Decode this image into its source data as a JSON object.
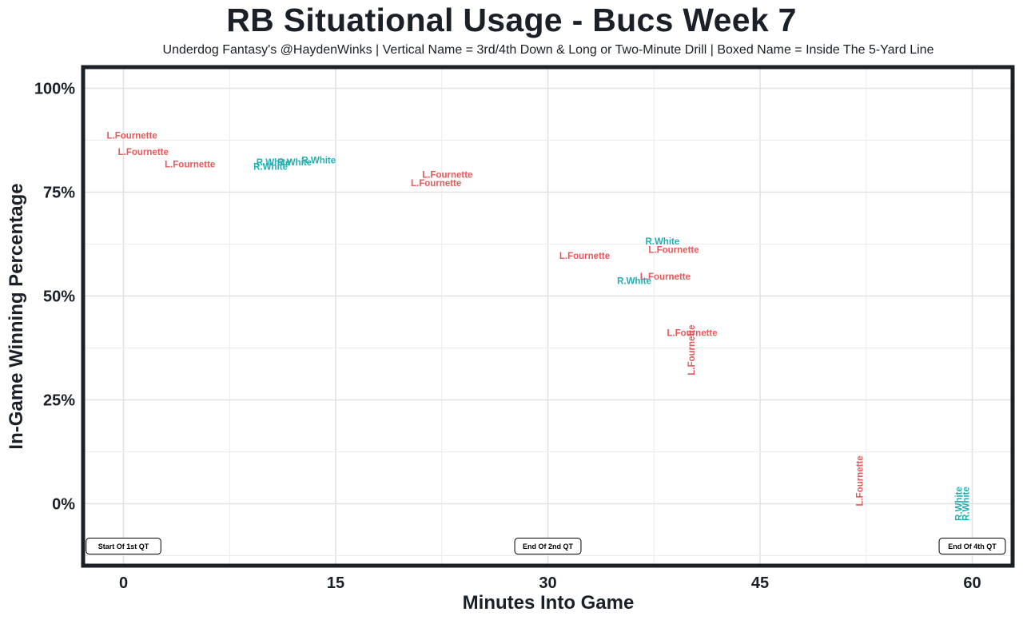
{
  "chart_data": {
    "type": "scatter",
    "title": "RB Situational Usage - Bucs Week 7",
    "subtitle": "Underdog Fantasy's @HaydenWinks | Vertical Name = 3rd/4th Down & Long or Two-Minute Drill | Boxed Name = Inside The 5-Yard Line",
    "xlabel": "Minutes Into Game",
    "ylabel": "In-Game Winning Percentage",
    "xlim": [
      -2.8,
      63
    ],
    "ylim": [
      -15,
      105
    ],
    "xticks": [
      0,
      15,
      30,
      45,
      60
    ],
    "xtick_labels": [
      "0",
      "15",
      "30",
      "45",
      "60"
    ],
    "yticks": [
      0,
      25,
      50,
      75,
      100
    ],
    "ytick_labels": [
      "0%",
      "25%",
      "50%",
      "75%",
      "100%"
    ],
    "grid": true,
    "colors": {
      "L.Fournette": "#e8585a",
      "R.White": "#1fb0b4"
    },
    "points": [
      {
        "label": "L.Fournette",
        "x": 0.6,
        "y": 88.5,
        "vertical": false
      },
      {
        "label": "L.Fournette",
        "x": 1.4,
        "y": 84.5,
        "vertical": false
      },
      {
        "label": "L.Fournette",
        "x": 4.7,
        "y": 81.5,
        "vertical": false
      },
      {
        "label": "R.White",
        "x": 10.6,
        "y": 82.0,
        "vertical": false
      },
      {
        "label": "R.White",
        "x": 12.1,
        "y": 82.0,
        "vertical": false
      },
      {
        "label": "R.White",
        "x": 13.8,
        "y": 82.5,
        "vertical": false
      },
      {
        "label": "R.White",
        "x": 10.4,
        "y": 81.0,
        "vertical": false
      },
      {
        "label": "L.Fournette",
        "x": 22.9,
        "y": 79.0,
        "vertical": false
      },
      {
        "label": "L.Fournette",
        "x": 22.1,
        "y": 77.0,
        "vertical": false
      },
      {
        "label": "L.Fournette",
        "x": 32.6,
        "y": 59.5,
        "vertical": false
      },
      {
        "label": "R.White",
        "x": 38.1,
        "y": 63.0,
        "vertical": false
      },
      {
        "label": "L.Fournette",
        "x": 38.9,
        "y": 61.0,
        "vertical": false
      },
      {
        "label": "L.Fournette",
        "x": 38.3,
        "y": 54.5,
        "vertical": false
      },
      {
        "label": "R.White",
        "x": 36.1,
        "y": 53.5,
        "vertical": false
      },
      {
        "label": "L.Fournette",
        "x": 40.2,
        "y": 41.0,
        "vertical": false
      },
      {
        "label": "L.Fournette",
        "x": 40.2,
        "y": 37.0,
        "vertical": true
      },
      {
        "label": "L.Fournette",
        "x": 52.1,
        "y": 5.5,
        "vertical": true
      },
      {
        "label": "R.White",
        "x": 59.1,
        "y": 0.0,
        "vertical": true
      },
      {
        "label": "R.White",
        "x": 59.6,
        "y": 0.0,
        "vertical": true
      }
    ],
    "annotations": [
      {
        "text": "Start Of 1st QT",
        "x": 0,
        "y": -10.2
      },
      {
        "text": "End Of 2nd QT",
        "x": 30,
        "y": -10.2
      },
      {
        "text": "End Of 4th QT",
        "x": 60,
        "y": -10.2
      }
    ]
  }
}
